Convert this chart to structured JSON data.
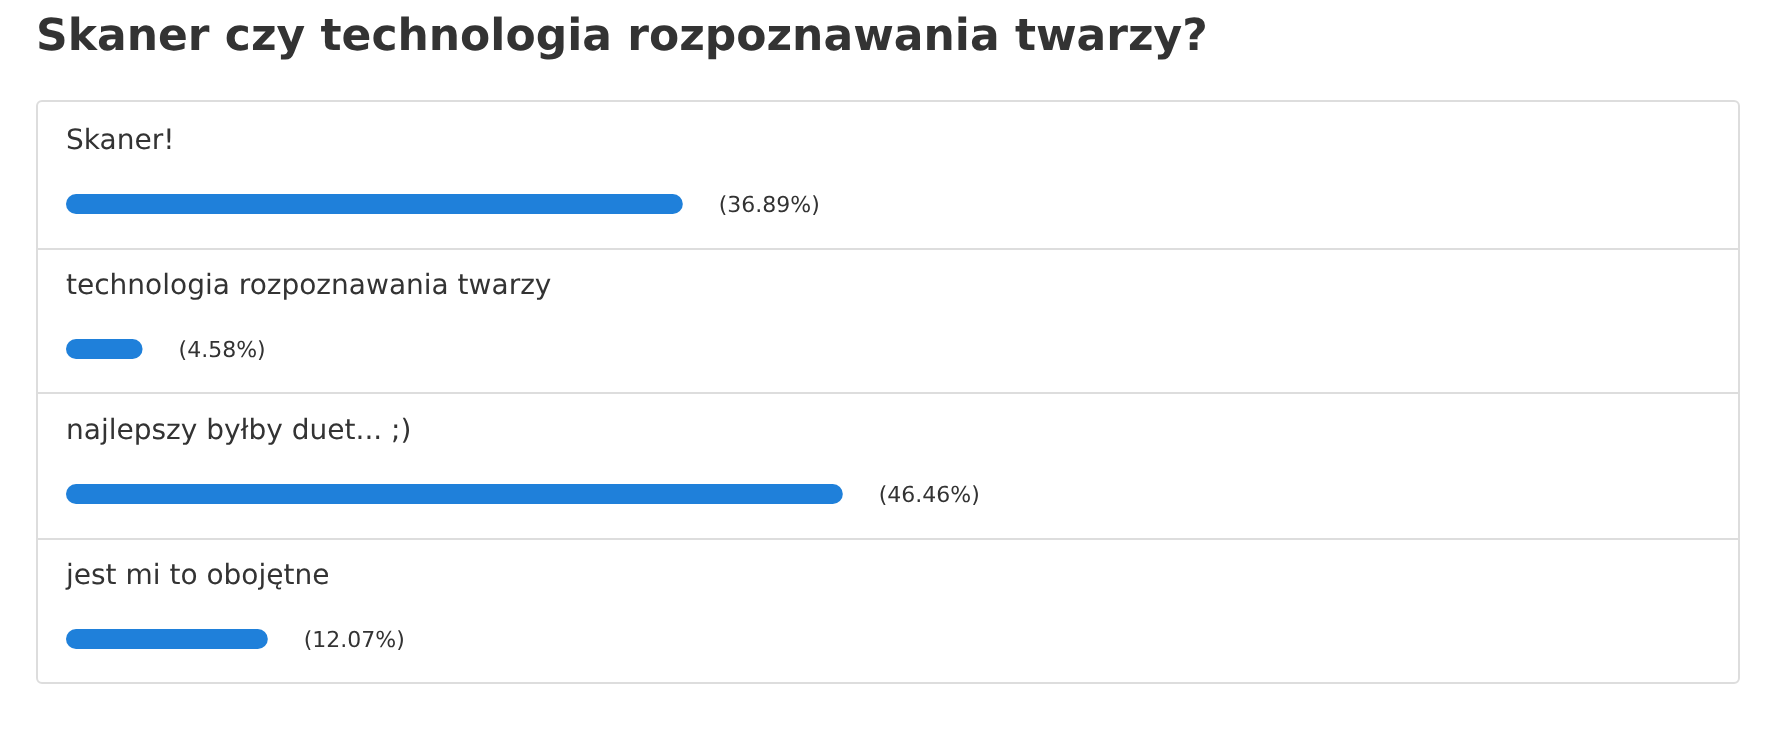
{
  "chart_data": {
    "type": "bar",
    "orientation": "horizontal",
    "title": "Skaner czy technologia rozpoznawania twarzy?",
    "categories": [
      "Skaner!",
      "technologia rozpoznawania twarzy",
      "najlepszy byłby duet... ;)",
      "jest mi to obojętne"
    ],
    "values": [
      36.89,
      4.58,
      46.46,
      12.07
    ],
    "value_labels": [
      "(36.89%)",
      "(4.58%)",
      "(46.46%)",
      "(12.07%)"
    ],
    "color": "#1f80da",
    "xlim": [
      0,
      100
    ],
    "grid": false,
    "legend": false
  }
}
